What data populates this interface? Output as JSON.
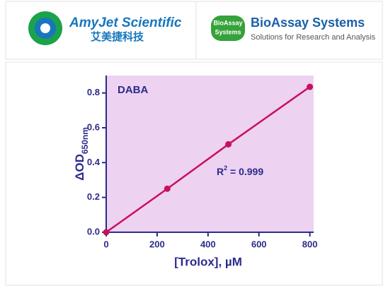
{
  "header": {
    "left": {
      "name": "AmyJet Scientific",
      "chinese": "艾美捷科技"
    },
    "right": {
      "badge_top": "BioAssay",
      "badge_bottom": "Systems",
      "name": "BioAssay Systems",
      "tagline": "Solutions for Research and Analysis"
    }
  },
  "chart_data": {
    "type": "line",
    "title": "DABA",
    "annotation": {
      "base": "R",
      "sup": "2",
      "text": " = 0.999"
    },
    "x_label": "[Trolox], µM",
    "y_label": {
      "main": "ΔOD",
      "sub": "650nm"
    },
    "x": [
      0,
      240,
      480,
      800
    ],
    "series": [
      {
        "name": "DABA",
        "color": "#c8105a",
        "values": [
          0,
          0.25,
          0.505,
          0.835
        ]
      }
    ],
    "xlim": [
      0,
      815
    ],
    "ylim": [
      0,
      0.9
    ],
    "xticks": [
      0,
      200,
      400,
      600,
      800
    ],
    "yticks": [
      {
        "value": 0,
        "label": "0.0"
      },
      0.2,
      0.4,
      0.6,
      0.8
    ],
    "background": "#edd2f2"
  }
}
